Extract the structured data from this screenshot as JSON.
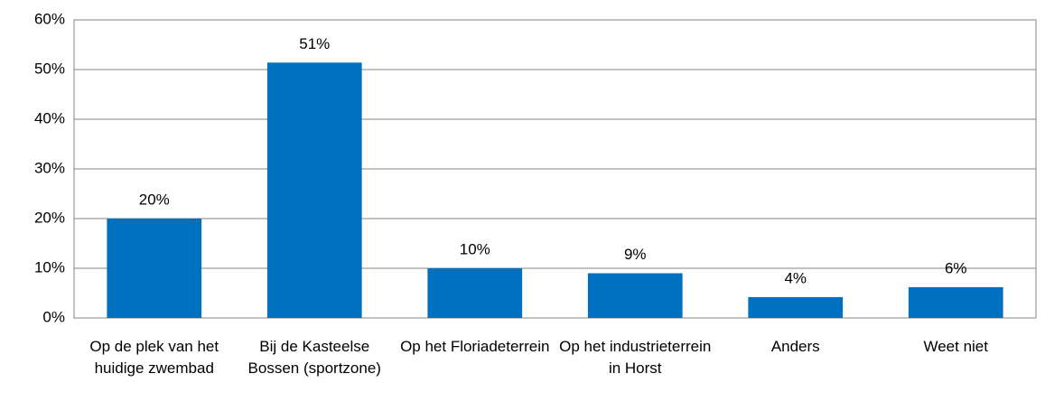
{
  "chart_data": {
    "type": "bar",
    "categories": [
      "Op de plek van het huidige zwembad",
      "Bij de Kasteelse Bossen (sportzone)",
      "Op het Floriadeterrein",
      "Op het industrieterrein in Horst",
      "Anders",
      "Weet niet"
    ],
    "values": [
      20,
      51.4,
      10,
      9,
      4.2,
      6.2
    ],
    "value_labels": [
      "20%",
      "51%",
      "10%",
      "9%",
      "4%",
      "6%"
    ],
    "color": "#0070c0",
    "ylim": [
      0,
      60
    ],
    "yticks": [
      {
        "value": 0,
        "label": "0%"
      },
      {
        "value": 10,
        "label": "10%"
      },
      {
        "value": 20,
        "label": "20%"
      },
      {
        "value": 30,
        "label": "30%"
      },
      {
        "value": 40,
        "label": "40%"
      },
      {
        "value": 50,
        "label": "50%"
      },
      {
        "value": 60,
        "label": "60%"
      }
    ],
    "grid": true
  }
}
